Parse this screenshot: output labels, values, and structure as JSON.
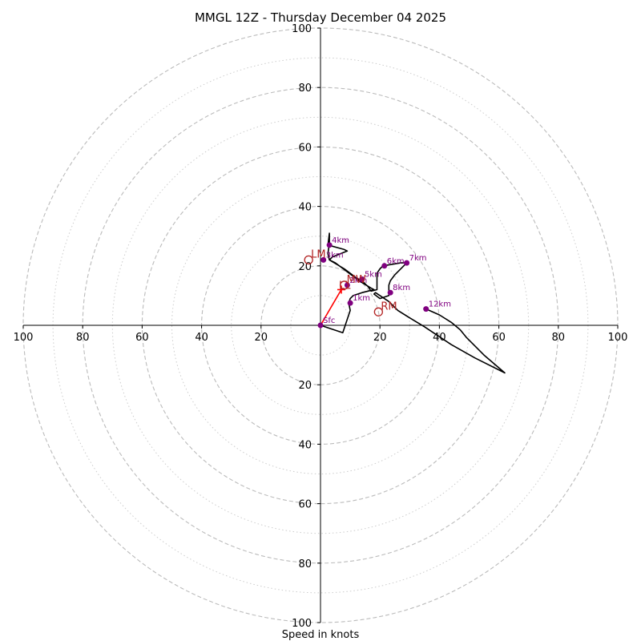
{
  "chart_data": {
    "type": "line",
    "subtype": "hodograph",
    "title": "MMGL 12Z - Thursday December 04 2025",
    "xlabel": "Speed in knots",
    "units": "knots",
    "axis_range": [
      -100,
      100
    ],
    "ring_major": [
      20,
      40,
      60,
      80,
      100
    ],
    "ring_minor": [
      10,
      30,
      50,
      70,
      90
    ],
    "tick_values": [
      20,
      40,
      60,
      80,
      100
    ],
    "tick_labels": [
      "20",
      "40",
      "60",
      "80",
      "100"
    ],
    "colors": {
      "hodo_line": "#000000",
      "height_marker": "#800080",
      "mean_wind_arrow": "#ff0000",
      "storm_motion": "#b22222",
      "grid": "#bbbbbb"
    },
    "hodo_line": {
      "u": [
        0,
        7.5,
        10,
        9.5,
        10,
        11,
        14,
        16,
        18,
        17,
        13,
        9,
        5,
        3,
        2.5,
        3,
        3,
        2.5,
        8,
        9,
        4,
        3,
        8,
        12,
        14,
        16,
        17,
        19,
        19,
        20,
        21,
        24,
        27,
        29,
        25,
        23.5,
        23,
        23,
        20,
        18,
        18.5,
        23,
        26,
        30,
        35,
        44,
        52,
        62,
        55,
        49,
        47,
        44,
        40,
        35.5
      ],
      "v": [
        0,
        -2.5,
        5,
        7.5,
        9,
        10,
        11,
        11.5,
        12,
        12.5,
        15,
        18,
        21,
        22,
        24,
        28,
        31,
        27,
        25.5,
        25,
        23,
        22,
        19,
        16,
        15,
        13,
        11.5,
        12,
        17.5,
        19,
        20,
        20.5,
        21,
        21,
        17,
        15,
        13.5,
        10,
        9,
        10.5,
        11,
        8,
        5,
        2.5,
        -0.5,
        -6.5,
        -11,
        -16,
        -10,
        -4,
        -1.5,
        1,
        3.5,
        5.5
      ]
    },
    "height_markers": [
      {
        "label": "Sfc",
        "u": 0,
        "v": 0
      },
      {
        "label": "1km",
        "u": 10,
        "v": 7.5
      },
      {
        "label": "2km",
        "u": 9,
        "v": 13.5
      },
      {
        "label": "3km",
        "u": 1,
        "v": 22
      },
      {
        "label": "4km",
        "u": 3,
        "v": 27
      },
      {
        "label": "5km",
        "u": 14,
        "v": 15.5
      },
      {
        "label": "6km",
        "u": 21.5,
        "v": 20
      },
      {
        "label": "7km",
        "u": 29,
        "v": 21
      },
      {
        "label": "8km",
        "u": 23.5,
        "v": 11
      },
      {
        "label": "12km",
        "u": 35.5,
        "v": 5.5
      }
    ],
    "storm_motions": [
      {
        "label": "LM",
        "u": -4,
        "v": 22
      },
      {
        "label": "MW",
        "u": 8,
        "v": 13.5
      },
      {
        "label": "RM",
        "u": 19.5,
        "v": 4.5
      }
    ],
    "mean_wind_vector": {
      "label": "LL",
      "u": 7,
      "v": 12
    }
  }
}
